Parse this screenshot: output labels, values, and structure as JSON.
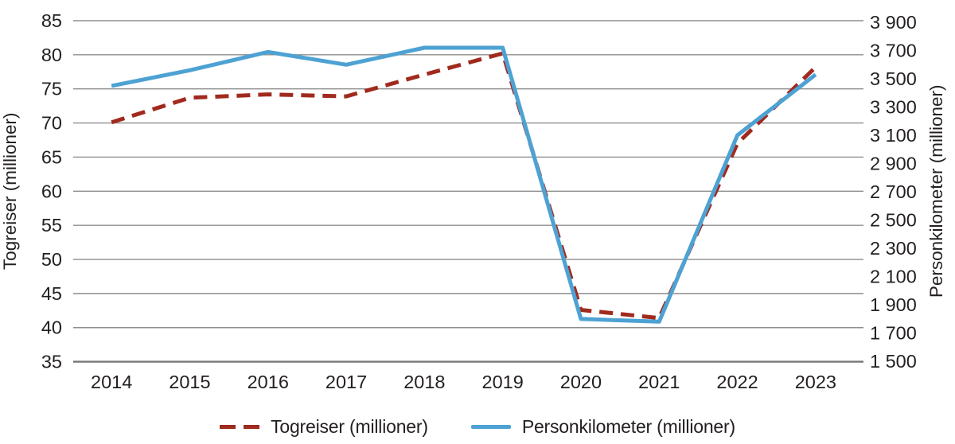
{
  "figure": {
    "background": "#ffffff",
    "text_color": "#231f20",
    "gridline_color": "#8e8e8e",
    "axisline_color": "#767676"
  },
  "chart_data": {
    "type": "line",
    "categories": [
      "2014",
      "2015",
      "2016",
      "2017",
      "2018",
      "2019",
      "2020",
      "2021",
      "2022",
      "2023"
    ],
    "series": [
      {
        "name": "Togreiser (millioner)",
        "axis": "left",
        "style": "dashed",
        "color": "#a12a1e",
        "values": [
          70.1,
          73.7,
          74.2,
          73.9,
          77.1,
          80.2,
          42.6,
          41.4,
          67.0,
          78.2
        ]
      },
      {
        "name": "Personkilometer (millioner)",
        "axis": "right",
        "style": "solid",
        "color": "#4da2d3",
        "values": [
          3450,
          3560,
          3690,
          3600,
          3720,
          3720,
          1800,
          1780,
          3100,
          3530
        ]
      }
    ],
    "left_axis": {
      "label": "Togreiser (millioner)",
      "min": 35,
      "max": 85,
      "step": 5,
      "tick_labels": [
        "85",
        "80",
        "75",
        "70",
        "65",
        "60",
        "55",
        "50",
        "45",
        "40",
        "35"
      ]
    },
    "right_axis": {
      "label": "Personkilometer (millioner)",
      "min": 1500,
      "max": 3900,
      "step": 200,
      "tick_labels": [
        "3 900",
        "3 700",
        "3 500",
        "3 300",
        "3 100",
        "2 900",
        "2 700",
        "2 500",
        "2 300",
        "2 100",
        "1 900",
        "1 700",
        "1 500"
      ]
    },
    "grid": true,
    "legend_position": "bottom"
  },
  "legend": {
    "items": [
      {
        "label": "Togreiser (millioner)",
        "color": "#a12a1e",
        "style": "dashed"
      },
      {
        "label": "Personkilometer (millioner)",
        "color": "#4da2d3",
        "style": "solid"
      }
    ]
  }
}
